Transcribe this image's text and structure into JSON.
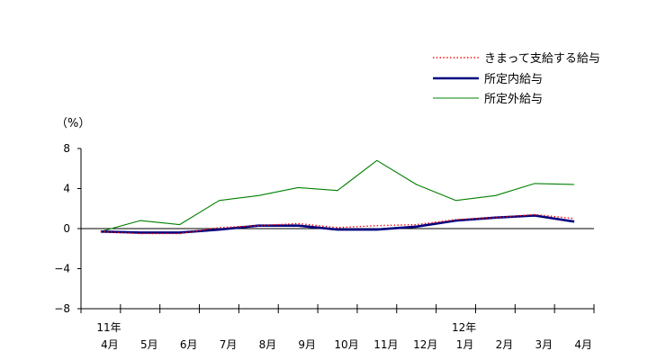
{
  "chart_data": {
    "type": "line",
    "categories": [
      "4月",
      "5月",
      "6月",
      "7月",
      "8月",
      "9月",
      "10月",
      "11月",
      "12月",
      "1月",
      "2月",
      "3月",
      "4月"
    ],
    "year_labels": [
      "11年",
      "",
      "",
      "",
      "",
      "",
      "",
      "",
      "",
      "12年",
      "",
      "",
      ""
    ],
    "y_unit": "（%）",
    "ylim": [
      -8,
      8
    ],
    "yticks": [
      {
        "value": 8,
        "label": "8"
      },
      {
        "value": 4,
        "label": "4"
      },
      {
        "value": 0,
        "label": "0"
      },
      {
        "value": -4,
        "label": "−4"
      },
      {
        "value": -8,
        "label": "−8"
      }
    ],
    "legend_position": "top-right",
    "series": [
      {
        "name": "きまって支給する給与",
        "style": "dotted",
        "color": "#ff0000",
        "values": [
          -0.3,
          -0.5,
          -0.5,
          0.1,
          0.3,
          0.5,
          0.1,
          0.3,
          0.4,
          0.9,
          1.1,
          1.4,
          1.0
        ]
      },
      {
        "name": "所定内給与",
        "style": "solid-thick",
        "color": "#000080",
        "values": [
          -0.3,
          -0.4,
          -0.4,
          -0.1,
          0.3,
          0.3,
          -0.1,
          -0.1,
          0.2,
          0.8,
          1.1,
          1.3,
          0.7
        ]
      },
      {
        "name": "所定外給与",
        "style": "solid",
        "color": "#008000",
        "values": [
          -0.3,
          0.8,
          0.4,
          2.8,
          3.3,
          4.1,
          3.8,
          6.8,
          4.4,
          2.8,
          3.3,
          4.5,
          4.4
        ]
      }
    ]
  }
}
